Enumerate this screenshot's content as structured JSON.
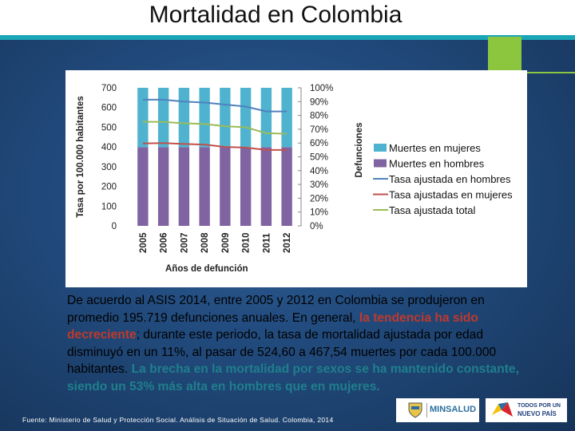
{
  "slide": {
    "title": "Mortalidad en Colombia",
    "source": "Fuente: Ministerio de Salud y Protección Social. Análisis de Situación de Salud. Colombia, 2014",
    "body": {
      "part1": "De acuerdo al ASIS 2014, entre 2005 y 2012 en Colombia se produjeron en promedio 195.719 defunciones anuales.  En general, ",
      "highlight1": "la tendencia ha sido decreciente",
      "part2": "; durante este periodo, la tasa de mortalidad ajustada por edad disminuyó en un 11%, al pasar de 524,60 a 467,54 muertes por cada 100.000 habitantes.  ",
      "highlight2": "La brecha en la mortalidad por sexos se ha mantenido constante, siendo un 53% más alta en hombres que en mujeres."
    },
    "logos": {
      "minsalud": "MINSALUD",
      "todos1": "TODOS POR UN",
      "todos2": "NUEVO PAÍS"
    },
    "colors": {
      "mujeres": "#4fb3cf",
      "hombres": "#8064a2",
      "tasa_hombres": "#4f81bd",
      "tasa_mujeres": "#c0504d",
      "tasa_total": "#9bbb59"
    }
  },
  "chart_data": {
    "type": "bar",
    "categories": [
      "2005",
      "2006",
      "2007",
      "2008",
      "2009",
      "2010",
      "2011",
      "2012"
    ],
    "ylabel_left": "Tasa por 100.000 habitantes",
    "ylabel_right": "Defunciones",
    "xlabel": "Años de defunción",
    "ylim_left": [
      0,
      700
    ],
    "yticks_left": [
      "0",
      "100",
      "200",
      "300",
      "400",
      "500",
      "600",
      "700"
    ],
    "ylim_right": [
      0,
      100
    ],
    "yticks_right": [
      "0%",
      "10%",
      "20%",
      "30%",
      "40%",
      "50%",
      "60%",
      "70%",
      "80%",
      "90%",
      "100%"
    ],
    "stacked_percent": true,
    "series": [
      {
        "name": "Muertes en mujeres",
        "type": "bar",
        "axis": "right",
        "values": [
          43,
          43,
          43,
          43,
          43,
          43,
          43,
          43
        ]
      },
      {
        "name": "Muertes en hombres",
        "type": "bar",
        "axis": "right",
        "values": [
          57,
          57,
          57,
          57,
          57,
          57,
          57,
          57
        ]
      },
      {
        "name": "Tasa ajustada en hombres",
        "type": "line",
        "axis": "left",
        "values": [
          640,
          640,
          630,
          625,
          615,
          605,
          580,
          580
        ]
      },
      {
        "name": "Tasa ajustadas en mujeres",
        "type": "line",
        "axis": "left",
        "values": [
          418,
          420,
          415,
          412,
          400,
          397,
          385,
          385
        ]
      },
      {
        "name": "Tasa ajustada total",
        "type": "line",
        "axis": "left",
        "values": [
          528,
          527,
          520,
          517,
          505,
          500,
          470,
          467
        ]
      }
    ],
    "legend": "right",
    "grid": false
  }
}
